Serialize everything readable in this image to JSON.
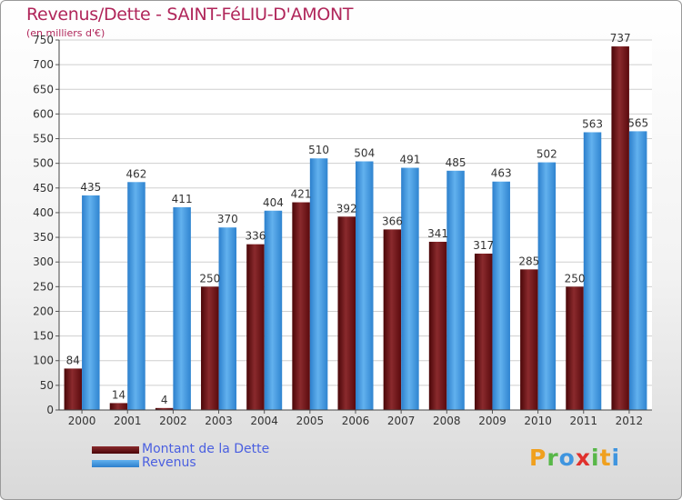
{
  "header": {
    "title": "Revenus/Dette - SAINT-FéLIU-D'AMONT",
    "subtitle": "(en milliers d'€)"
  },
  "legend": [
    {
      "label": "Montant de la Dette",
      "color": "#6b0f12"
    },
    {
      "label": "Revenus",
      "color": "#3f95df"
    }
  ],
  "logo": {
    "letters": [
      "P",
      "r",
      "o",
      "x",
      "i",
      "t",
      "i"
    ],
    "colors": [
      "#f0a01e",
      "#58b748",
      "#3f95df",
      "#e0312d",
      "#58b748",
      "#f0a01e",
      "#3f95df"
    ]
  },
  "chart_data": {
    "type": "bar",
    "title": "Revenus/Dette - SAINT-FéLIU-D'AMONT",
    "ylabel": "(en milliers d'€)",
    "xlabel": "",
    "categories": [
      "2000",
      "2001",
      "2002",
      "2003",
      "2004",
      "2005",
      "2006",
      "2007",
      "2008",
      "2009",
      "2010",
      "2011",
      "2012"
    ],
    "series": [
      {
        "name": "Montant de la Dette",
        "color": "#6b0f12",
        "values": [
          84,
          14,
          4,
          250,
          336,
          421,
          392,
          366,
          341,
          317,
          285,
          250,
          737
        ]
      },
      {
        "name": "Revenus",
        "color": "#3f95df",
        "values": [
          435,
          462,
          411,
          370,
          404,
          510,
          504,
          491,
          485,
          463,
          502,
          563,
          565
        ]
      }
    ],
    "ylim": [
      0,
      750
    ],
    "yticks": [
      0,
      50,
      100,
      150,
      200,
      250,
      300,
      350,
      400,
      450,
      500,
      550,
      600,
      650,
      700,
      750
    ],
    "grid": true,
    "legend_position": "bottom-left"
  }
}
